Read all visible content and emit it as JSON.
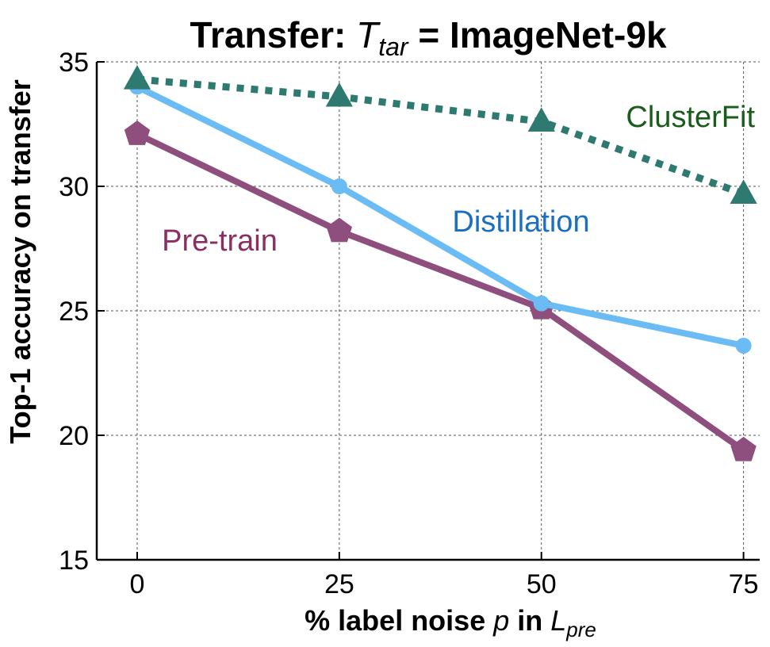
{
  "chart_data": {
    "type": "line",
    "title": {
      "prefix": "Transfer: ",
      "var": "T",
      "sub": "tar",
      "suffix": " = ImageNet-9k"
    },
    "xlabel": {
      "text": "% label noise ",
      "var": "p",
      "mid": " in  ",
      "var2": "L",
      "sub": "pre"
    },
    "ylabel": "Top-1 accuracy on transfer",
    "x": [
      0,
      25,
      50,
      75
    ],
    "xticks": [
      "0",
      "25",
      "50",
      "75"
    ],
    "yticks": [
      "15",
      "20",
      "25",
      "30",
      "35"
    ],
    "ylim": [
      15,
      35
    ],
    "xlim": [
      -5,
      77
    ],
    "grid": true,
    "series": [
      {
        "name": "ClusterFit",
        "values": [
          34.3,
          33.6,
          32.6,
          29.7
        ],
        "color": "#2e7a70",
        "label_color": "#1a5c1a",
        "style": "dotted",
        "marker": "triangle"
      },
      {
        "name": "Distillation",
        "values": [
          34.0,
          30.0,
          25.3,
          23.6
        ],
        "color": "#6bbcf5",
        "label_color": "#1a6fc0",
        "style": "solid",
        "marker": "circle"
      },
      {
        "name": "Pre-train",
        "values": [
          32.1,
          28.2,
          25.1,
          19.4
        ],
        "color": "#8e4f7e",
        "label_color": "#8a3060",
        "style": "solid",
        "marker": "pentagon"
      }
    ]
  }
}
